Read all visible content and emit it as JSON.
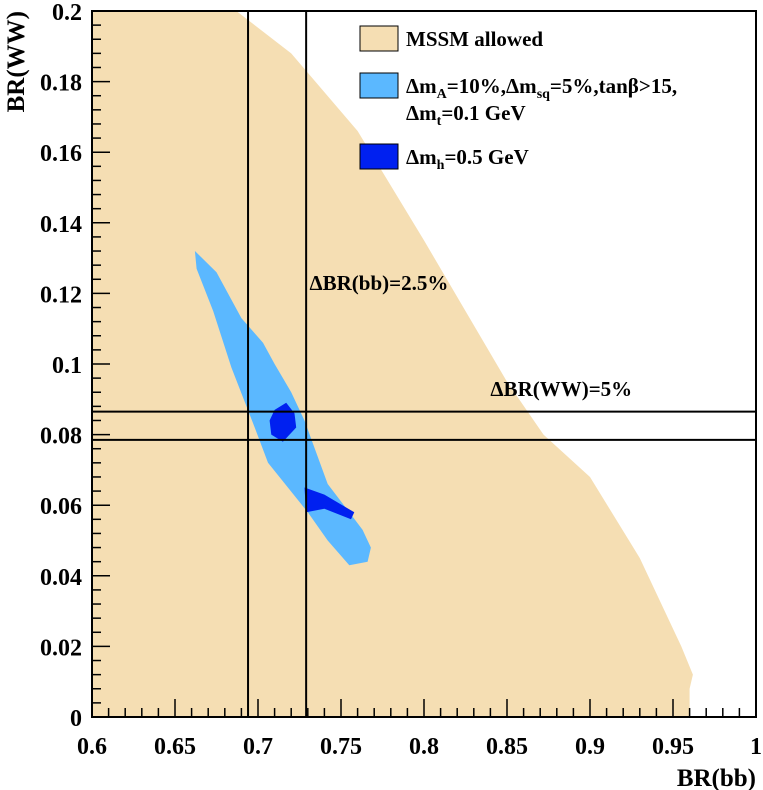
{
  "chart_data": {
    "type": "area",
    "xlabel": "BR(bb)",
    "ylabel": "BR(WW)",
    "xlim": [
      0.6,
      1.0
    ],
    "ylim": [
      0,
      0.2
    ],
    "xticks": [
      0.6,
      0.65,
      0.7,
      0.75,
      0.8,
      0.85,
      0.9,
      0.95,
      1
    ],
    "xtick_labels": [
      "0.6",
      "0.65",
      "0.7",
      "0.75",
      "0.8",
      "0.85",
      "0.9",
      "0.95",
      "1"
    ],
    "yticks": [
      0,
      0.02,
      0.04,
      0.06,
      0.08,
      0.1,
      0.12,
      0.14,
      0.16,
      0.18,
      0.2
    ],
    "ytick_labels": [
      "0",
      "0.02",
      "0.04",
      "0.06",
      "0.08",
      "0.1",
      "0.12",
      "0.14",
      "0.16",
      "0.18",
      "0.2"
    ],
    "regions": [
      {
        "name": "MSSM allowed",
        "color": "#f5deb3",
        "points": [
          [
            0.6,
            0
          ],
          [
            0.96,
            0
          ],
          [
            0.96,
            0.008
          ],
          [
            0.962,
            0.012
          ],
          [
            0.955,
            0.02
          ],
          [
            0.93,
            0.045
          ],
          [
            0.9,
            0.068
          ],
          [
            0.872,
            0.08
          ],
          [
            0.85,
            0.095
          ],
          [
            0.8,
            0.135
          ],
          [
            0.76,
            0.166
          ],
          [
            0.72,
            0.188
          ],
          [
            0.687,
            0.2
          ],
          [
            0.6,
            0.2
          ]
        ]
      },
      {
        "name": "Δm_A=10%, Δm_sq=5%, tanβ>15, Δm_t=0.1 GeV",
        "color": "#5bb8ff",
        "points": [
          [
            0.662,
            0.132
          ],
          [
            0.675,
            0.126
          ],
          [
            0.69,
            0.113
          ],
          [
            0.703,
            0.106
          ],
          [
            0.71,
            0.1
          ],
          [
            0.72,
            0.092
          ],
          [
            0.728,
            0.084
          ],
          [
            0.735,
            0.075
          ],
          [
            0.742,
            0.066
          ],
          [
            0.755,
            0.058
          ],
          [
            0.763,
            0.053
          ],
          [
            0.768,
            0.048
          ],
          [
            0.766,
            0.044
          ],
          [
            0.755,
            0.043
          ],
          [
            0.742,
            0.05
          ],
          [
            0.73,
            0.058
          ],
          [
            0.718,
            0.065
          ],
          [
            0.706,
            0.072
          ],
          [
            0.698,
            0.082
          ],
          [
            0.684,
            0.099
          ],
          [
            0.673,
            0.115
          ],
          [
            0.663,
            0.127
          ]
        ]
      },
      {
        "name": "Δm_h=0.5 GeV",
        "color": "#0020f0",
        "points": [
          [
            0.71,
            0.087
          ],
          [
            0.717,
            0.089
          ],
          [
            0.722,
            0.086
          ],
          [
            0.723,
            0.082
          ],
          [
            0.715,
            0.078
          ],
          [
            0.708,
            0.08
          ],
          [
            0.707,
            0.084
          ]
        ]
      },
      {
        "name": "Δm_h=0.5 GeV",
        "color": "#0020f0",
        "points": [
          [
            0.728,
            0.065
          ],
          [
            0.74,
            0.063
          ],
          [
            0.758,
            0.058
          ],
          [
            0.756,
            0.056
          ],
          [
            0.74,
            0.059
          ],
          [
            0.729,
            0.058
          ]
        ]
      }
    ],
    "vertical_lines": [
      0.694,
      0.729
    ],
    "horizontal_lines": [
      0.0865,
      0.0785
    ],
    "annotations": [
      {
        "text": "ΔBR(bb)=2.5%",
        "x": 0.731,
        "y": 0.121
      },
      {
        "text": "ΔBR(WW)=5%",
        "x": 0.84,
        "y": 0.091
      }
    ],
    "legend": {
      "placement": "top-right",
      "entries": [
        {
          "color": "#f5deb3",
          "lines": [
            [
              {
                "t": "MSSM allowed"
              }
            ]
          ]
        },
        {
          "color": "#5bb8ff",
          "lines": [
            [
              {
                "t": "Δm"
              },
              {
                "t": "A",
                "sub": true
              },
              {
                "t": "=10%,Δm"
              },
              {
                "t": "sq",
                "sub": true
              },
              {
                "t": "=5%,tanβ>15,"
              }
            ],
            [
              {
                "t": "Δm"
              },
              {
                "t": "t",
                "sub": true
              },
              {
                "t": "=0.1 GeV"
              }
            ]
          ]
        },
        {
          "color": "#0020f0",
          "lines": [
            [
              {
                "t": "Δm"
              },
              {
                "t": "h",
                "sub": true
              },
              {
                "t": "=0.5 GeV"
              }
            ]
          ]
        }
      ]
    }
  }
}
